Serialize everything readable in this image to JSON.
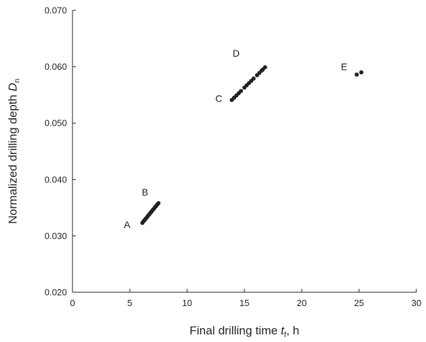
{
  "chart_data": {
    "type": "scatter",
    "xlabel": {
      "text": "Final drilling time ",
      "symbol": "t",
      "subscript": "f",
      "unit": ", h"
    },
    "ylabel": {
      "text": "Normalized drilling depth ",
      "symbol": "D",
      "subscript": "n"
    },
    "xlim": [
      0,
      30
    ],
    "xticks": [
      0,
      5,
      10,
      15,
      20,
      25,
      30
    ],
    "ylim": [
      0.02,
      0.07
    ],
    "yticks": [
      {
        "value": 0.02,
        "label": "0.020"
      },
      {
        "value": 0.03,
        "label": "0.030"
      },
      {
        "value": 0.04,
        "label": "0.040"
      },
      {
        "value": 0.05,
        "label": "0.050"
      },
      {
        "value": 0.06,
        "label": "0.060"
      },
      {
        "value": 0.07,
        "label": "0.070"
      }
    ],
    "series": [
      {
        "color": "#222222",
        "x": [
          6.1,
          6.2,
          6.3,
          6.4,
          6.5,
          6.6,
          6.7,
          6.8,
          6.9,
          7.0,
          7.1,
          7.2,
          7.3,
          7.4,
          7.5,
          13.9,
          14.1,
          14.3,
          14.5,
          14.7,
          15.0,
          15.2,
          15.4,
          15.6,
          15.8,
          16.1,
          16.3,
          16.5,
          16.6,
          16.8,
          24.8,
          25.2
        ],
        "values": [
          0.0323,
          0.0326,
          0.0328,
          0.0331,
          0.0333,
          0.0336,
          0.0338,
          0.0341,
          0.0343,
          0.0346,
          0.0348,
          0.0351,
          0.0353,
          0.0356,
          0.0358,
          0.0541,
          0.0545,
          0.0549,
          0.0553,
          0.0557,
          0.0563,
          0.0567,
          0.0571,
          0.0575,
          0.0579,
          0.0585,
          0.0589,
          0.0593,
          0.0595,
          0.0599,
          0.0586,
          0.059
        ]
      }
    ],
    "annotations": [
      {
        "text": "A",
        "x": 4.76,
        "y": 0.032
      },
      {
        "text": "B",
        "x": 6.33,
        "y": 0.0378
      },
      {
        "text": "C",
        "x": 12.77,
        "y": 0.0544
      },
      {
        "text": "D",
        "x": 14.28,
        "y": 0.0624
      },
      {
        "text": "E",
        "x": 23.7,
        "y": 0.06
      }
    ]
  }
}
